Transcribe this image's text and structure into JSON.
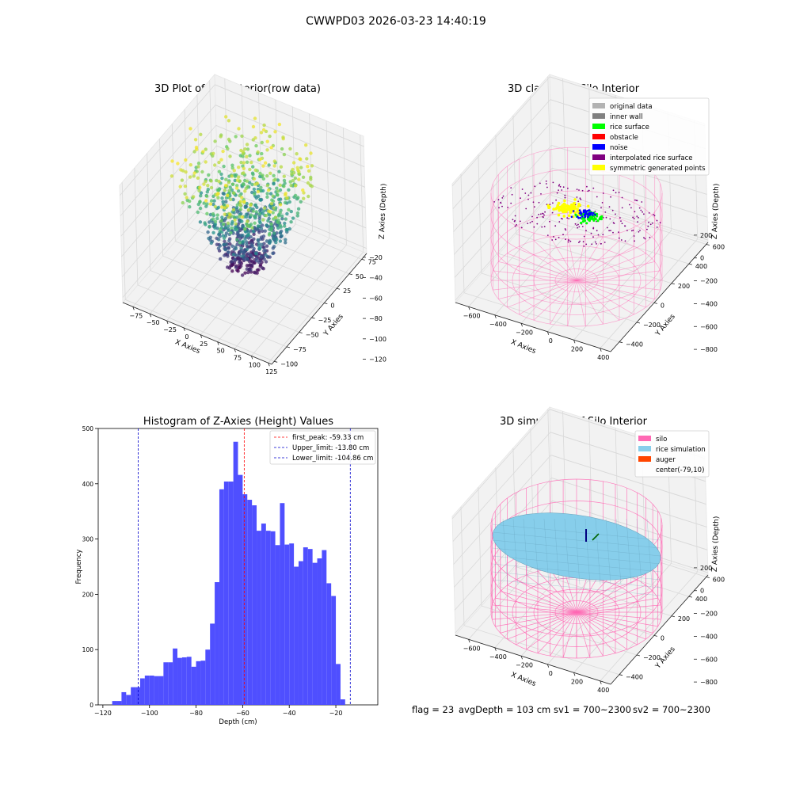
{
  "figure": {
    "suptitle": "CWWPD03 2026-03-23 14:40:19",
    "footer": {
      "flag": "flag = 23",
      "avg_depth": "avgDepth = 103 cm",
      "sv1": "sv1 = 700~2300",
      "sv2": "sv2 = 700~2300"
    }
  },
  "colors": {
    "histogram_bar": "#4B4BFF",
    "first_peak": "#FF0000",
    "limits": "#0000CC",
    "silo": "#FF69B4",
    "rice_simulation": "#87CEEB",
    "auger": "#FF4500",
    "original_data": "#B3B3B3",
    "inner_wall": "#808080",
    "rice_surface": "#00FF00",
    "obstacle": "#FF0000",
    "noise": "#0000FF",
    "interpolated_rice_surface": "#800080",
    "symmetric_generated_points": "#FFFF00"
  },
  "chart_data": [
    {
      "type": "scatter",
      "subtype": "3d-scatter",
      "title": "3D Plot of Silo Interior(row data)",
      "xlabel": "X Axies",
      "ylabel": "Y Axies",
      "zlabel": "Z Axies (Depth)",
      "xlim": [
        -90,
        130
      ],
      "ylim": [
        -105,
        85
      ],
      "zlim": [
        -125,
        -10
      ],
      "xticks": [
        -75,
        -50,
        -25,
        0,
        25,
        50,
        75,
        100,
        125
      ],
      "yticks": [
        -100,
        -75,
        -50,
        -25,
        0,
        25,
        50,
        75
      ],
      "zticks": [
        -120,
        -100,
        -80,
        -60,
        -40,
        -20
      ],
      "colormap": "viridis",
      "grid": true
    },
    {
      "type": "scatter",
      "subtype": "3d-classified",
      "title": "3D classify of Silo Interior",
      "xlabel": "X Axies",
      "ylabel": "Y Axies",
      "zlabel": "Z Axies (Depth)",
      "xlim": [
        -700,
        480
      ],
      "ylim": [
        -500,
        620
      ],
      "zlim": [
        -820,
        220
      ],
      "xticks": [
        -600,
        -400,
        -200,
        0,
        200,
        400
      ],
      "yticks": [
        -400,
        -200,
        0,
        200,
        400,
        600
      ],
      "zticks": [
        -800,
        -600,
        -400,
        -200,
        0,
        200
      ],
      "legend_position": "top-right",
      "legend": [
        {
          "label": "original data",
          "color": "#B3B3B3"
        },
        {
          "label": "inner wall",
          "color": "#808080"
        },
        {
          "label": "rice surface",
          "color": "#00FF00"
        },
        {
          "label": "obstacle",
          "color": "#FF0000"
        },
        {
          "label": "noise",
          "color": "#0000FF"
        },
        {
          "label": "interpolated rice surface",
          "color": "#800080"
        },
        {
          "label": "symmetric generated points",
          "color": "#FFFF00"
        }
      ],
      "grid": true
    },
    {
      "type": "bar",
      "subtype": "histogram",
      "title": "Histogram of Z-Axies (Height) Values",
      "xlabel": "Depth (cm)",
      "ylabel": "Frequency",
      "xlim": [
        -122,
        -2
      ],
      "ylim": [
        0,
        500
      ],
      "xticks": [
        -120,
        -100,
        -80,
        -60,
        -40,
        -20
      ],
      "yticks": [
        0,
        100,
        200,
        300,
        400,
        500
      ],
      "bin_start": -116,
      "bin_width": 2,
      "values": [
        7,
        7,
        23,
        18,
        32,
        32,
        48,
        53,
        53,
        52,
        52,
        77,
        77,
        102,
        85,
        86,
        87,
        69,
        79,
        80,
        100,
        147,
        222,
        390,
        404,
        404,
        476,
        416,
        381,
        371,
        361,
        315,
        328,
        315,
        314,
        289,
        365,
        290,
        292,
        250,
        260,
        285,
        282,
        257,
        265,
        280,
        220,
        197,
        74,
        10
      ],
      "lines": [
        {
          "label": "first_peak: -59.33 cm",
          "x": -59.33,
          "color": "#FF0000"
        },
        {
          "label": "Upper_limit: -13.80 cm",
          "x": -13.8,
          "color": "#0000CC"
        },
        {
          "label": "Lower_limit: -104.86 cm",
          "x": -104.86,
          "color": "#0000CC"
        }
      ],
      "legend_position": "top-right"
    },
    {
      "type": "area",
      "subtype": "3d-surface",
      "title": "3D simulation of Silo Interior",
      "xlabel": "X Axies",
      "ylabel": "Y Axies",
      "zlabel": "Z Axies (Depth)",
      "xlim": [
        -700,
        480
      ],
      "ylim": [
        -500,
        620
      ],
      "zlim": [
        -820,
        220
      ],
      "xticks": [
        -600,
        -400,
        -200,
        0,
        200,
        400
      ],
      "yticks": [
        -400,
        -200,
        0,
        200,
        400,
        600
      ],
      "zticks": [
        -800,
        -600,
        -400,
        -200,
        0,
        200
      ],
      "legend_position": "top-right",
      "legend": [
        {
          "label": "silo",
          "color": "#FF69B4"
        },
        {
          "label": "rice simulation",
          "color": "#87CEEB"
        },
        {
          "label": "auger",
          "color": "#FF4500"
        },
        {
          "label": "center(-79,10)",
          "color": ""
        }
      ],
      "grid": true
    }
  ]
}
